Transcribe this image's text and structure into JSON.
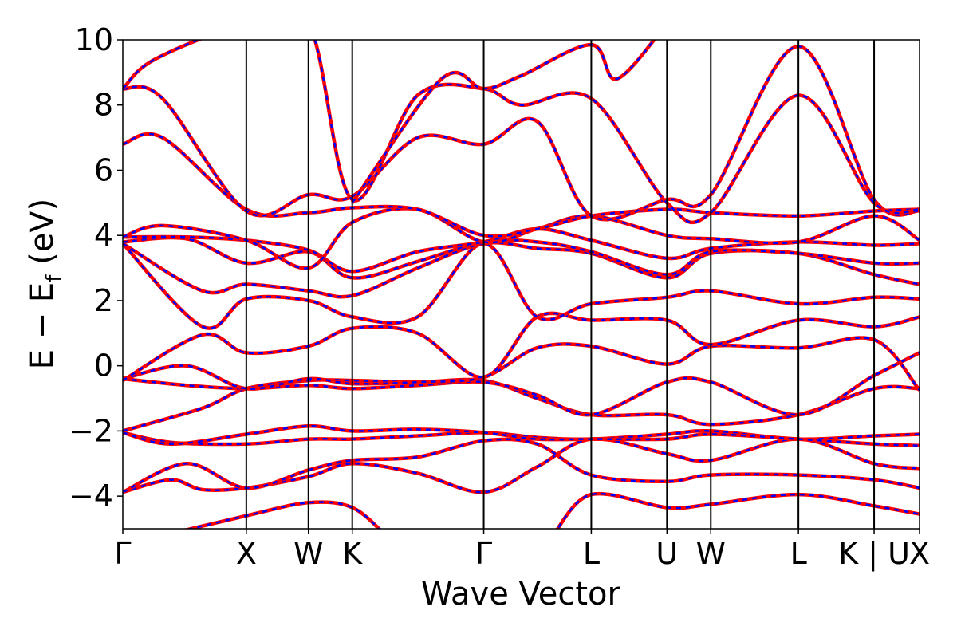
{
  "chart_data": {
    "type": "line",
    "title": "",
    "xlabel": "Wave Vector",
    "ylabel_prefix": "E − E",
    "ylabel_subscript": "f",
    "ylabel_suffix": " (eV)",
    "ylim": [
      -5,
      10
    ],
    "yticks": [
      -4,
      -2,
      0,
      2,
      4,
      6,
      8,
      10
    ],
    "ytick_labels": [
      "−4",
      "−2",
      "0",
      "2",
      "4",
      "6",
      "8",
      "10"
    ],
    "x_path": [
      {
        "label": "Γ",
        "x": 0.0
      },
      {
        "label": "X",
        "x": 0.155
      },
      {
        "label": "W",
        "x": 0.233
      },
      {
        "label": "K",
        "x": 0.288
      },
      {
        "label": "Γ",
        "x": 0.453
      },
      {
        "label": "L",
        "x": 0.588
      },
      {
        "label": "U",
        "x": 0.683
      },
      {
        "label": "W",
        "x": 0.738
      },
      {
        "label": "L",
        "x": 0.848
      },
      {
        "label": "K | U",
        "x": 0.943
      },
      {
        "label": "X",
        "x": 1.0
      }
    ],
    "xlim": [
      0,
      1
    ],
    "grid": false,
    "legend": "none",
    "series_styles": [
      {
        "color": "#ff0000",
        "style": "solid"
      },
      {
        "color": "#0000ff",
        "style": "dashed"
      }
    ],
    "bands": [
      [
        [
          0.0,
          -3.88
        ],
        [
          0.06,
          -3.5
        ],
        [
          0.1,
          -3.8
        ],
        [
          0.155,
          -3.75
        ],
        [
          0.233,
          -3.4
        ],
        [
          0.288,
          -3.0
        ],
        [
          0.37,
          -3.3
        ],
        [
          0.453,
          -3.88
        ],
        [
          0.52,
          -3.1
        ],
        [
          0.588,
          -2.25
        ],
        [
          0.683,
          -2.7
        ],
        [
          0.738,
          -2.9
        ],
        [
          0.848,
          -2.25
        ],
        [
          0.943,
          -3.0
        ],
        [
          1.0,
          -3.15
        ]
      ],
      [
        [
          0.0,
          -3.88
        ],
        [
          0.08,
          -3.0
        ],
        [
          0.155,
          -3.75
        ],
        [
          0.233,
          -3.2
        ],
        [
          0.288,
          -2.9
        ],
        [
          0.37,
          -2.8
        ],
        [
          0.453,
          -2.3
        ],
        [
          0.52,
          -2.4
        ],
        [
          0.588,
          -3.35
        ],
        [
          0.683,
          -3.55
        ],
        [
          0.738,
          -3.35
        ],
        [
          0.848,
          -3.35
        ],
        [
          0.943,
          -3.5
        ],
        [
          1.0,
          -3.75
        ]
      ],
      [
        [
          0.0,
          -2.05
        ],
        [
          0.06,
          -2.35
        ],
        [
          0.155,
          -2.4
        ],
        [
          0.233,
          -2.25
        ],
        [
          0.288,
          -2.25
        ],
        [
          0.37,
          -2.15
        ],
        [
          0.453,
          -2.05
        ],
        [
          0.52,
          -2.2
        ],
        [
          0.588,
          -2.25
        ],
        [
          0.683,
          -2.1
        ],
        [
          0.738,
          -2.0
        ],
        [
          0.848,
          -2.25
        ],
        [
          0.943,
          -2.15
        ],
        [
          1.0,
          -2.1
        ]
      ],
      [
        [
          0.0,
          -2.05
        ],
        [
          0.06,
          -2.4
        ],
        [
          0.155,
          -2.1
        ],
        [
          0.233,
          -1.85
        ],
        [
          0.288,
          -2.0
        ],
        [
          0.37,
          -1.95
        ],
        [
          0.453,
          -2.05
        ],
        [
          0.52,
          -2.25
        ],
        [
          0.588,
          -2.25
        ],
        [
          0.683,
          -2.25
        ],
        [
          0.738,
          -2.1
        ],
        [
          0.848,
          -2.25
        ],
        [
          0.943,
          -2.4
        ],
        [
          1.0,
          -2.45
        ]
      ],
      [
        [
          0.0,
          -2.0
        ],
        [
          0.1,
          -1.3
        ],
        [
          0.155,
          -0.7
        ],
        [
          0.233,
          -0.45
        ],
        [
          0.288,
          -0.45
        ],
        [
          0.37,
          -0.5
        ],
        [
          0.453,
          -0.45
        ],
        [
          0.52,
          -1.0
        ],
        [
          0.588,
          -1.5
        ],
        [
          0.683,
          -1.5
        ],
        [
          0.738,
          -1.8
        ],
        [
          0.848,
          -1.5
        ],
        [
          0.943,
          -0.7
        ],
        [
          1.0,
          -0.7
        ]
      ],
      [
        [
          0.0,
          -0.4
        ],
        [
          0.08,
          -0.6
        ],
        [
          0.155,
          -0.7
        ],
        [
          0.233,
          -0.6
        ],
        [
          0.288,
          -0.7
        ],
        [
          0.37,
          -0.6
        ],
        [
          0.453,
          -0.5
        ],
        [
          0.52,
          -0.9
        ],
        [
          0.588,
          -1.5
        ],
        [
          0.683,
          -0.5
        ],
        [
          0.738,
          -0.5
        ],
        [
          0.848,
          -1.5
        ],
        [
          0.943,
          -0.3
        ],
        [
          1.0,
          0.4
        ]
      ],
      [
        [
          0.0,
          -0.4
        ],
        [
          0.08,
          0.0
        ],
        [
          0.155,
          -0.7
        ],
        [
          0.233,
          -0.4
        ],
        [
          0.288,
          -0.55
        ],
        [
          0.37,
          -0.5
        ],
        [
          0.453,
          -0.35
        ],
        [
          0.52,
          0.55
        ],
        [
          0.588,
          0.6
        ],
        [
          0.683,
          0.05
        ],
        [
          0.738,
          0.6
        ],
        [
          0.848,
          0.55
        ],
        [
          0.943,
          0.8
        ],
        [
          1.0,
          -0.75
        ]
      ],
      [
        [
          0.0,
          -0.45
        ],
        [
          0.1,
          0.95
        ],
        [
          0.155,
          0.4
        ],
        [
          0.233,
          0.6
        ],
        [
          0.288,
          1.15
        ],
        [
          0.37,
          1.0
        ],
        [
          0.453,
          -0.35
        ],
        [
          0.52,
          1.5
        ],
        [
          0.588,
          1.4
        ],
        [
          0.683,
          1.4
        ],
        [
          0.738,
          0.65
        ],
        [
          0.848,
          1.4
        ],
        [
          0.943,
          1.2
        ],
        [
          1.0,
          1.5
        ]
      ],
      [
        [
          0.0,
          3.75
        ],
        [
          0.1,
          1.2
        ],
        [
          0.155,
          2.05
        ],
        [
          0.233,
          2.0
        ],
        [
          0.288,
          1.5
        ],
        [
          0.37,
          1.5
        ],
        [
          0.453,
          3.75
        ],
        [
          0.52,
          1.5
        ],
        [
          0.588,
          1.9
        ],
        [
          0.683,
          2.1
        ],
        [
          0.738,
          2.3
        ],
        [
          0.848,
          1.9
        ],
        [
          0.943,
          2.1
        ],
        [
          1.0,
          2.05
        ]
      ],
      [
        [
          0.0,
          3.75
        ],
        [
          0.1,
          2.3
        ],
        [
          0.155,
          2.5
        ],
        [
          0.233,
          2.3
        ],
        [
          0.288,
          2.15
        ],
        [
          0.37,
          3.0
        ],
        [
          0.453,
          3.75
        ],
        [
          0.52,
          3.6
        ],
        [
          0.588,
          3.45
        ],
        [
          0.683,
          2.7
        ],
        [
          0.738,
          3.45
        ],
        [
          0.848,
          3.45
        ],
        [
          0.943,
          2.8
        ],
        [
          1.0,
          2.5
        ]
      ],
      [
        [
          0.0,
          3.8
        ],
        [
          0.08,
          3.9
        ],
        [
          0.155,
          3.15
        ],
        [
          0.233,
          3.5
        ],
        [
          0.288,
          2.7
        ],
        [
          0.37,
          3.2
        ],
        [
          0.453,
          3.8
        ],
        [
          0.52,
          3.8
        ],
        [
          0.588,
          3.5
        ],
        [
          0.683,
          2.8
        ],
        [
          0.738,
          3.5
        ],
        [
          0.848,
          3.45
        ],
        [
          0.943,
          3.15
        ],
        [
          1.0,
          3.15
        ]
      ],
      [
        [
          0.0,
          3.95
        ],
        [
          0.08,
          3.95
        ],
        [
          0.155,
          3.85
        ],
        [
          0.233,
          3.55
        ],
        [
          0.288,
          2.9
        ],
        [
          0.37,
          3.5
        ],
        [
          0.453,
          3.8
        ],
        [
          0.52,
          4.2
        ],
        [
          0.588,
          3.85
        ],
        [
          0.683,
          3.3
        ],
        [
          0.738,
          3.6
        ],
        [
          0.848,
          3.8
        ],
        [
          0.943,
          3.7
        ],
        [
          1.0,
          3.75
        ]
      ],
      [
        [
          0.0,
          3.95
        ],
        [
          0.05,
          4.3
        ],
        [
          0.155,
          3.85
        ],
        [
          0.233,
          3.0
        ],
        [
          0.288,
          4.4
        ],
        [
          0.37,
          4.8
        ],
        [
          0.453,
          3.8
        ],
        [
          0.52,
          4.2
        ],
        [
          0.588,
          4.6
        ],
        [
          0.683,
          4.0
        ],
        [
          0.738,
          3.9
        ],
        [
          0.848,
          3.8
        ],
        [
          0.943,
          4.6
        ],
        [
          1.0,
          3.85
        ]
      ],
      [
        [
          0.0,
          6.8
        ],
        [
          0.05,
          7.0
        ],
        [
          0.155,
          4.8
        ],
        [
          0.233,
          4.7
        ],
        [
          0.288,
          4.85
        ],
        [
          0.37,
          4.8
        ],
        [
          0.453,
          4.0
        ],
        [
          0.52,
          4.2
        ],
        [
          0.588,
          4.6
        ],
        [
          0.683,
          4.8
        ],
        [
          0.738,
          4.7
        ],
        [
          0.848,
          4.6
        ],
        [
          0.943,
          4.75
        ],
        [
          1.0,
          4.8
        ]
      ],
      [
        [
          0.0,
          8.5
        ],
        [
          0.05,
          8.2
        ],
        [
          0.155,
          4.75
        ],
        [
          0.233,
          5.25
        ],
        [
          0.288,
          5.2
        ],
        [
          0.37,
          7.0
        ],
        [
          0.453,
          6.8
        ],
        [
          0.52,
          7.5
        ],
        [
          0.588,
          4.6
        ],
        [
          0.683,
          5.1
        ],
        [
          0.738,
          5.25
        ],
        [
          0.848,
          9.8
        ],
        [
          0.943,
          5.1
        ],
        [
          1.0,
          4.75
        ]
      ],
      [
        [
          0.0,
          8.5
        ],
        [
          0.04,
          9.4
        ],
        [
          0.155,
          10.5
        ],
        [
          0.233,
          10.5
        ],
        [
          0.288,
          5.1
        ],
        [
          0.37,
          8.3
        ],
        [
          0.453,
          8.5
        ],
        [
          0.5,
          8.0
        ],
        [
          0.588,
          8.2
        ],
        [
          0.683,
          5.0
        ],
        [
          0.738,
          4.7
        ],
        [
          0.848,
          8.3
        ],
        [
          0.943,
          5.0
        ],
        [
          1.0,
          4.8
        ]
      ],
      [
        [
          0.288,
          5.0
        ],
        [
          0.4,
          8.8
        ],
        [
          0.453,
          8.5
        ],
        [
          0.5,
          8.9
        ],
        [
          0.588,
          9.85
        ],
        [
          0.62,
          8.8
        ],
        [
          0.683,
          10.5
        ]
      ],
      [
        [
          0.0,
          -5.5
        ],
        [
          0.155,
          -4.6
        ],
        [
          0.233,
          -4.2
        ],
        [
          0.288,
          -4.35
        ],
        [
          0.33,
          -5.2
        ]
      ],
      [
        [
          0.54,
          -5.2
        ],
        [
          0.588,
          -3.95
        ],
        [
          0.683,
          -4.35
        ],
        [
          0.738,
          -4.25
        ],
        [
          0.848,
          -3.95
        ],
        [
          0.943,
          -4.3
        ],
        [
          1.0,
          -4.55
        ]
      ]
    ]
  }
}
